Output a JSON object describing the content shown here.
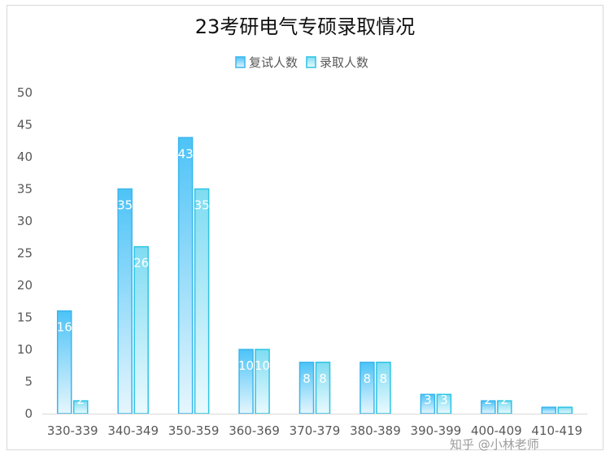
{
  "chart_data": {
    "type": "bar",
    "title": "23考研电气专硕录取情况",
    "categories": [
      "330-339",
      "340-349",
      "350-359",
      "360-369",
      "370-379",
      "380-389",
      "390-399",
      "400-409",
      "410-419"
    ],
    "series": [
      {
        "name": "复试人数",
        "values": [
          16,
          35,
          43,
          10,
          8,
          8,
          3,
          2,
          1
        ]
      },
      {
        "name": "录取人数",
        "values": [
          2,
          26,
          35,
          10,
          8,
          8,
          3,
          2,
          1
        ]
      }
    ],
    "ylim": [
      0,
      50
    ],
    "yticks": [
      0,
      5,
      10,
      15,
      20,
      25,
      30,
      35,
      40,
      45,
      50
    ],
    "grid": false,
    "legend_position": "top-center",
    "xlabel": "",
    "ylabel": ""
  },
  "colors": {
    "series1_top": "#4dc3f7",
    "series1_bottom": "#e6f6fd",
    "series1_border": "#3bb5ee",
    "series2_top": "#7fdcf2",
    "series2_bottom": "#eafafe",
    "series2_border": "#2bc4e4",
    "axis": "#d9d9d9"
  },
  "watermark": "知乎 @小林老师"
}
